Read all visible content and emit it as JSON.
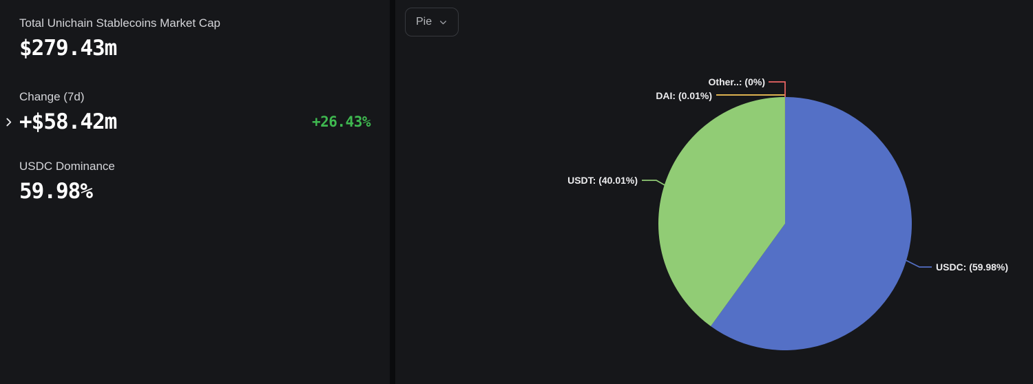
{
  "stats": {
    "market_cap": {
      "label": "Total Unichain Stablecoins Market Cap",
      "value": "$279.43m"
    },
    "change_7d": {
      "label": "Change (7d)",
      "value": "+$58.42m",
      "percent": "+26.43%",
      "percent_color": "#3fb950"
    },
    "dominance": {
      "label": "USDC Dominance",
      "value": "59.98%"
    }
  },
  "controls": {
    "chart_type": "Pie",
    "chevron_down_icon": "chevron-down",
    "expand_icon": "chevron-right"
  },
  "chart_data": {
    "type": "pie",
    "title": "",
    "legend_position": "none",
    "start_angle": "top",
    "direction": "clockwise",
    "series": [
      {
        "name": "USDC",
        "value": 59.98,
        "color": "#5470C6",
        "label": "USDC: (59.98%)"
      },
      {
        "name": "USDT",
        "value": 40.01,
        "color": "#91CC75",
        "label": "USDT: (40.01%)"
      },
      {
        "name": "DAI",
        "value": 0.01,
        "color": "#FAC858",
        "label": "DAI: (0.01%)"
      },
      {
        "name": "Other..",
        "value": 0,
        "color": "#EE6666",
        "label": "Other..: (0%)"
      }
    ]
  }
}
